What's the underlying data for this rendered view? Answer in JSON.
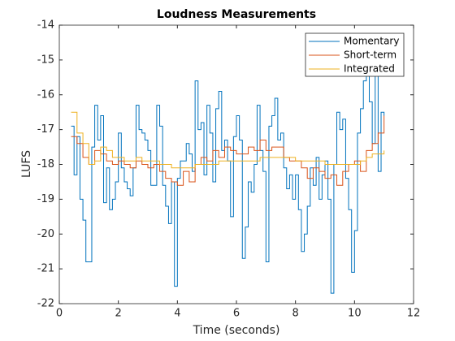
{
  "chart_data": {
    "type": "stairs",
    "title": "Loudness Measurements",
    "xlabel": "Time (seconds)",
    "ylabel": "LUFS",
    "xlim": [
      0,
      12
    ],
    "xticks": [
      0,
      2,
      4,
      6,
      8,
      10,
      12
    ],
    "ylim": [
      -22,
      -14
    ],
    "yticks": [
      -22,
      -21,
      -20,
      -19,
      -18,
      -17,
      -16,
      -15,
      -14
    ],
    "legend": "northeast",
    "box": true,
    "series": [
      {
        "name": "Momentary",
        "color": "#0072bd",
        "x": [
          0.4,
          0.5,
          0.6,
          0.7,
          0.8,
          0.9,
          1.0,
          1.1,
          1.2,
          1.3,
          1.4,
          1.5,
          1.6,
          1.7,
          1.8,
          1.9,
          2.0,
          2.1,
          2.2,
          2.3,
          2.4,
          2.5,
          2.6,
          2.7,
          2.8,
          2.9,
          3.0,
          3.1,
          3.2,
          3.3,
          3.4,
          3.5,
          3.6,
          3.7,
          3.8,
          3.9,
          4.0,
          4.1,
          4.2,
          4.3,
          4.4,
          4.5,
          4.6,
          4.7,
          4.8,
          4.9,
          5.0,
          5.1,
          5.2,
          5.3,
          5.4,
          5.5,
          5.6,
          5.7,
          5.8,
          5.9,
          6.0,
          6.1,
          6.2,
          6.3,
          6.4,
          6.5,
          6.6,
          6.7,
          6.8,
          6.9,
          7.0,
          7.1,
          7.2,
          7.3,
          7.4,
          7.5,
          7.6,
          7.7,
          7.8,
          7.9,
          8.0,
          8.1,
          8.2,
          8.3,
          8.4,
          8.5,
          8.6,
          8.7,
          8.8,
          8.9,
          9.0,
          9.1,
          9.2,
          9.3,
          9.4,
          9.5,
          9.6,
          9.7,
          9.8,
          9.9,
          10.0,
          10.1,
          10.2,
          10.3,
          10.4,
          10.5,
          10.6,
          10.7,
          10.8,
          10.9,
          11.0
        ],
        "values": [
          -16.9,
          -18.3,
          -17.2,
          -19.0,
          -19.6,
          -20.8,
          -20.8,
          -17.5,
          -16.3,
          -17.3,
          -16.6,
          -19.1,
          -18.1,
          -19.3,
          -19.0,
          -18.5,
          -17.1,
          -18.1,
          -18.5,
          -18.7,
          -18.9,
          -18.1,
          -16.3,
          -17.0,
          -17.1,
          -17.3,
          -17.6,
          -18.6,
          -18.6,
          -16.3,
          -16.9,
          -18.6,
          -19.2,
          -19.7,
          -18.5,
          -21.5,
          -18.4,
          -17.9,
          -17.9,
          -17.4,
          -17.7,
          -18.2,
          -15.6,
          -17.0,
          -16.8,
          -18.3,
          -16.3,
          -17.1,
          -18.5,
          -16.4,
          -15.9,
          -17.6,
          -17.3,
          -17.9,
          -19.5,
          -17.2,
          -16.6,
          -17.3,
          -20.7,
          -19.8,
          -18.5,
          -18.8,
          -18.0,
          -16.3,
          -17.6,
          -18.2,
          -20.8,
          -16.9,
          -16.6,
          -16.1,
          -17.3,
          -17.1,
          -18.1,
          -18.7,
          -18.3,
          -19.0,
          -18.3,
          -19.3,
          -20.5,
          -20.0,
          -19.2,
          -18.1,
          -18.6,
          -17.8,
          -19.0,
          -18.3,
          -17.9,
          -19.0,
          -21.7,
          -18.0,
          -16.5,
          -17.0,
          -16.7,
          -18.4,
          -19.3,
          -21.1,
          -19.9,
          -17.1,
          -16.4,
          -15.6,
          -15.2,
          -16.2,
          -17.4,
          -15.4,
          -18.2,
          -16.5,
          -16.6
        ]
      },
      {
        "name": "Short-term",
        "color": "#d95319",
        "x": [
          0.4,
          0.6,
          0.8,
          1.0,
          1.2,
          1.4,
          1.6,
          1.8,
          2.0,
          2.2,
          2.4,
          2.6,
          2.8,
          3.0,
          3.2,
          3.4,
          3.6,
          3.8,
          4.0,
          4.2,
          4.4,
          4.6,
          4.8,
          5.0,
          5.2,
          5.4,
          5.6,
          5.8,
          6.0,
          6.2,
          6.4,
          6.6,
          6.8,
          7.0,
          7.2,
          7.4,
          7.6,
          7.8,
          8.0,
          8.2,
          8.4,
          8.6,
          8.8,
          9.0,
          9.2,
          9.4,
          9.6,
          9.8,
          10.0,
          10.2,
          10.4,
          10.6,
          10.8,
          11.0
        ],
        "values": [
          -17.2,
          -17.4,
          -17.8,
          -18.0,
          -17.6,
          -17.7,
          -17.9,
          -18.0,
          -17.9,
          -18.0,
          -18.1,
          -17.9,
          -18.0,
          -18.1,
          -18.0,
          -18.2,
          -18.4,
          -18.5,
          -18.6,
          -18.2,
          -18.5,
          -18.0,
          -17.8,
          -17.9,
          -17.6,
          -17.8,
          -17.5,
          -17.6,
          -17.7,
          -17.7,
          -17.5,
          -17.6,
          -17.3,
          -17.6,
          -17.5,
          -17.5,
          -17.8,
          -17.9,
          -17.9,
          -18.1,
          -18.4,
          -18.1,
          -18.2,
          -18.4,
          -18.3,
          -18.6,
          -18.2,
          -18.0,
          -17.9,
          -18.2,
          -17.6,
          -17.4,
          -17.1,
          -16.6
        ]
      },
      {
        "name": "Integrated",
        "color": "#edb120",
        "x": [
          0.4,
          0.6,
          0.8,
          1.0,
          1.2,
          1.4,
          1.6,
          1.8,
          2.0,
          2.2,
          2.4,
          2.6,
          2.8,
          3.0,
          3.2,
          3.4,
          3.6,
          3.8,
          4.0,
          4.2,
          4.4,
          4.6,
          4.8,
          5.0,
          5.2,
          5.4,
          5.6,
          5.8,
          6.0,
          6.2,
          6.4,
          6.6,
          6.8,
          7.0,
          7.2,
          7.4,
          7.6,
          7.8,
          8.0,
          8.2,
          8.4,
          8.6,
          8.8,
          9.0,
          9.2,
          9.4,
          9.6,
          9.8,
          10.0,
          10.2,
          10.4,
          10.6,
          10.8,
          11.0
        ],
        "values": [
          -16.5,
          -17.1,
          -17.4,
          -18.0,
          -17.9,
          -17.5,
          -17.6,
          -17.8,
          -17.8,
          -17.9,
          -17.9,
          -17.8,
          -17.9,
          -17.9,
          -17.9,
          -18.0,
          -18.0,
          -18.1,
          -18.1,
          -18.1,
          -18.1,
          -18.0,
          -18.0,
          -18.0,
          -18.0,
          -17.9,
          -17.9,
          -17.9,
          -17.9,
          -17.9,
          -17.9,
          -17.9,
          -17.8,
          -17.8,
          -17.8,
          -17.8,
          -17.8,
          -17.8,
          -17.9,
          -17.9,
          -17.9,
          -17.9,
          -17.9,
          -18.0,
          -18.0,
          -18.0,
          -18.0,
          -18.0,
          -18.0,
          -17.9,
          -17.8,
          -17.7,
          -17.7,
          -17.6
        ]
      }
    ]
  }
}
